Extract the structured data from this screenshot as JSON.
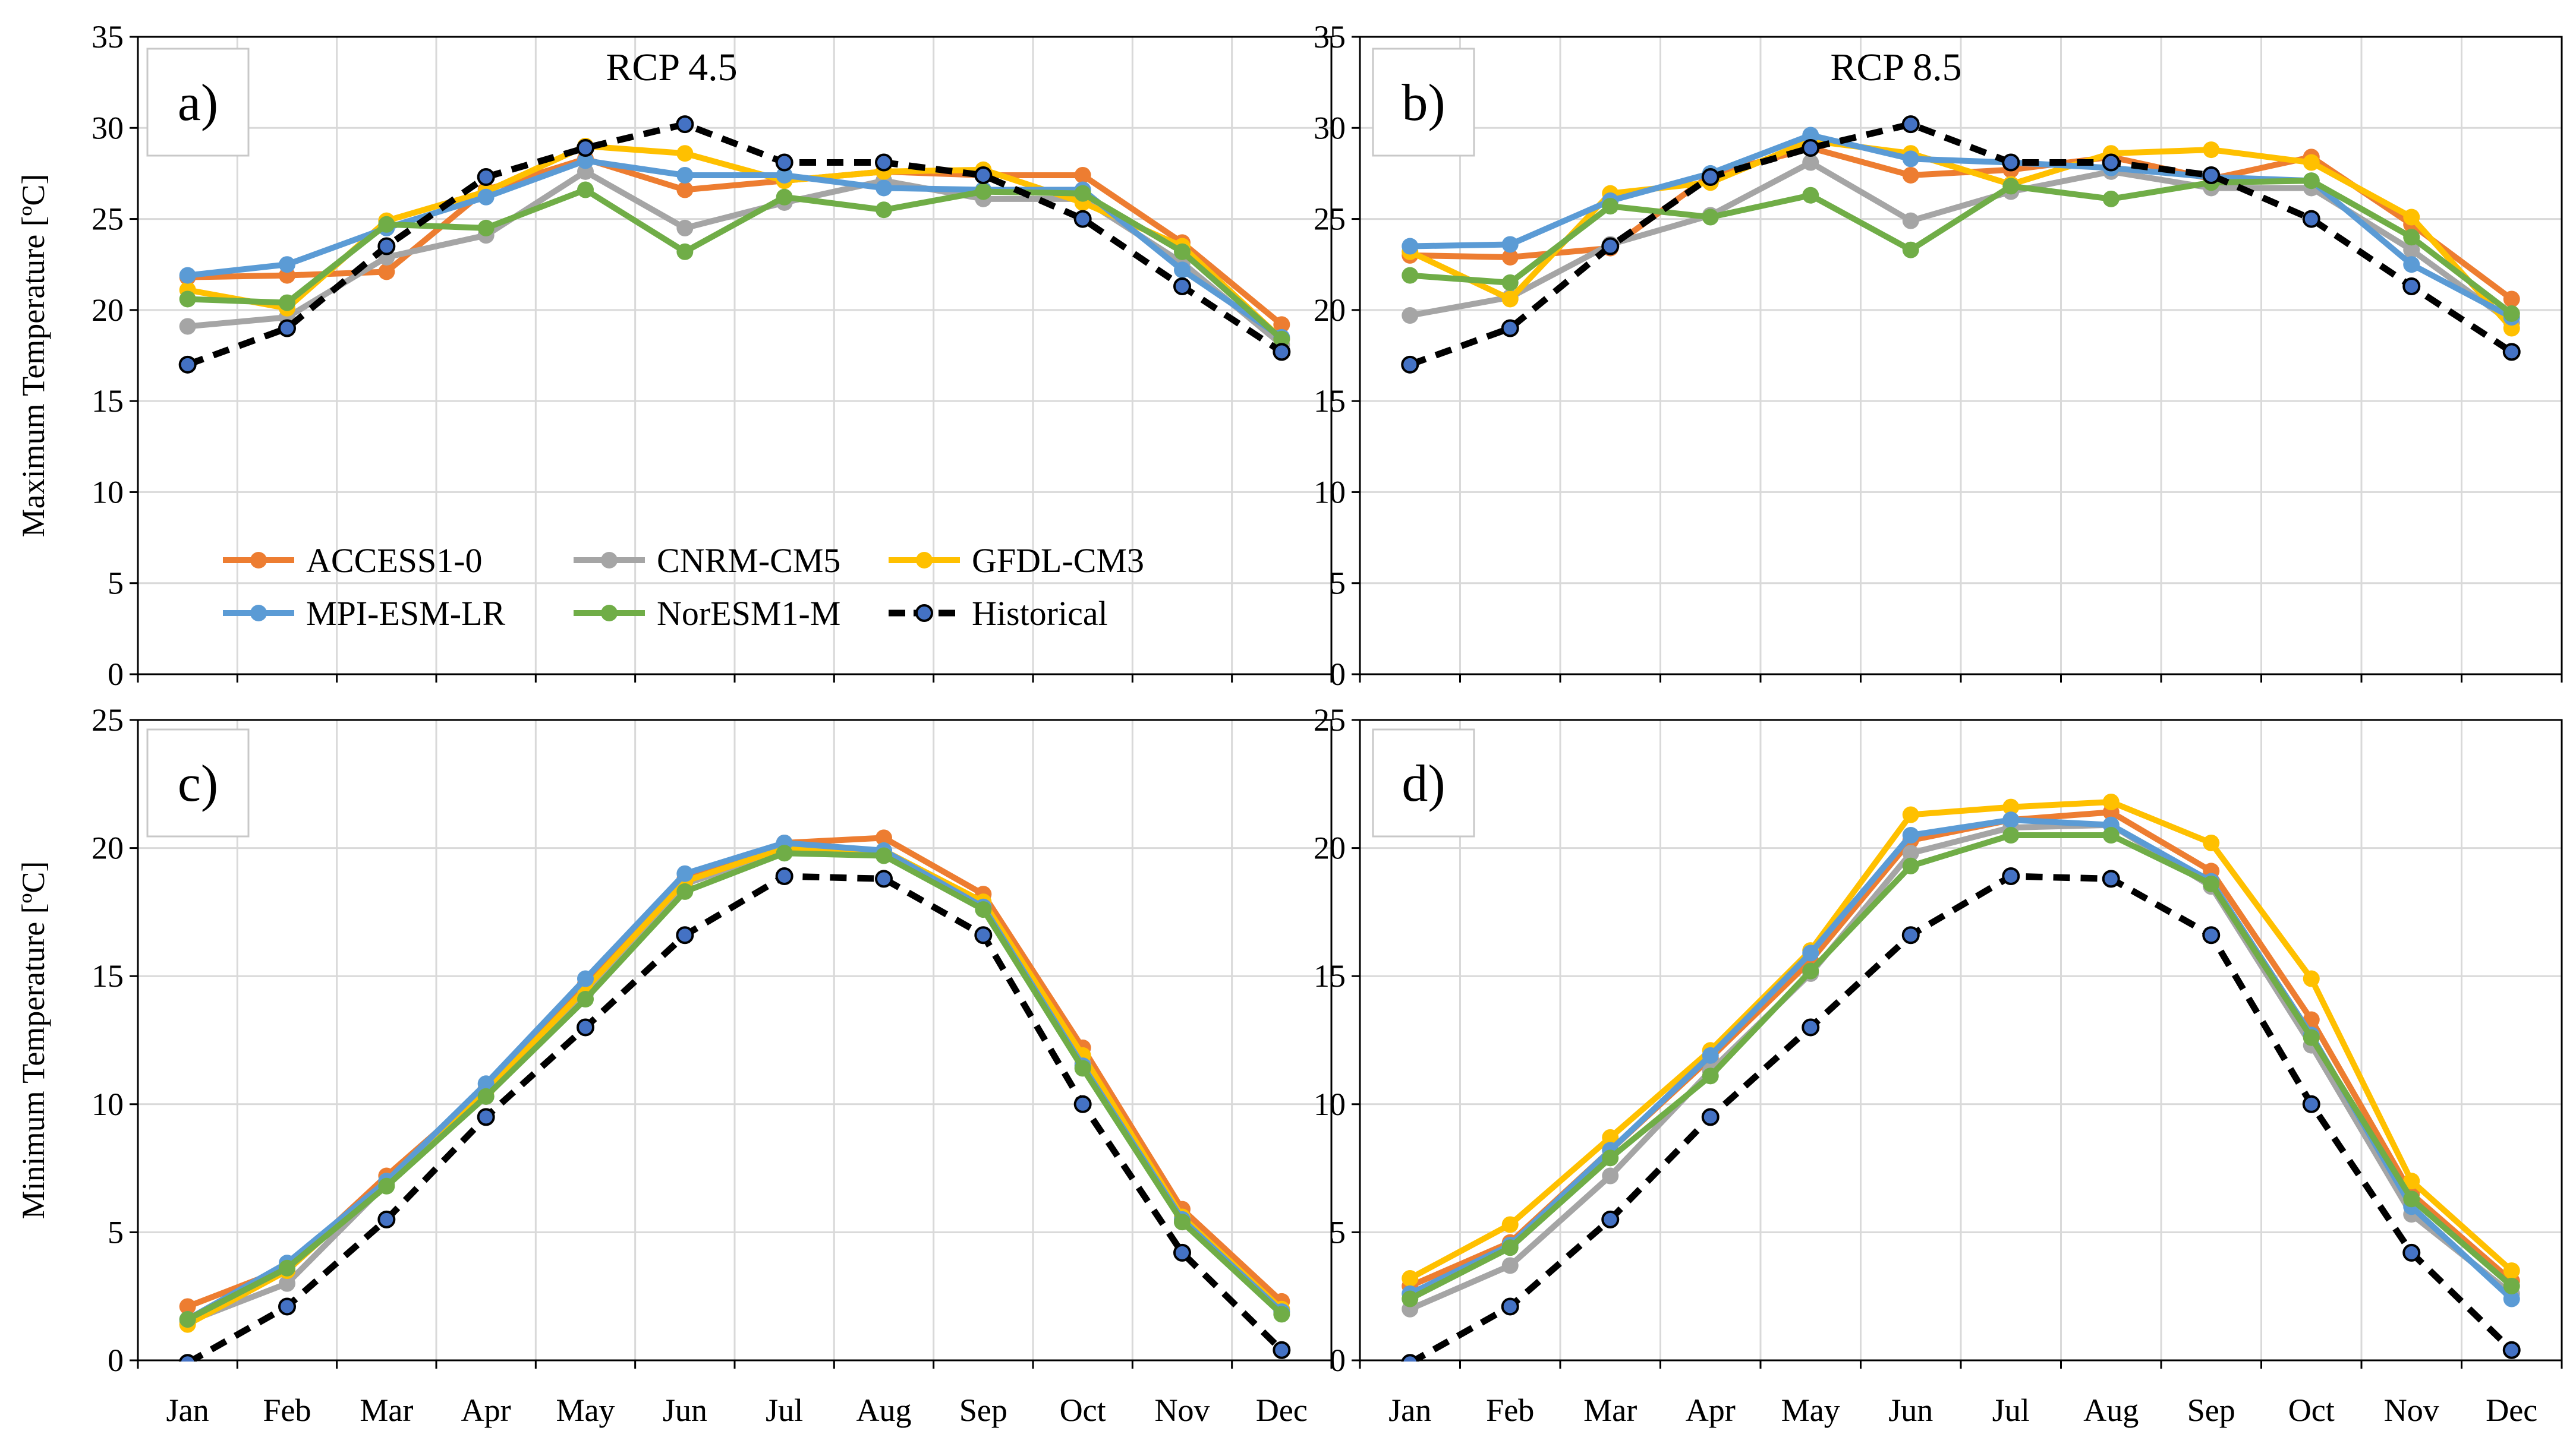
{
  "months": [
    "Jan",
    "Feb",
    "Mar",
    "Apr",
    "May",
    "Jun",
    "Jul",
    "Aug",
    "Sep",
    "Oct",
    "Nov",
    "Dec"
  ],
  "colors": {
    "ACCESS1-0": "#ED7D31",
    "CNRM-CM5": "#A5A5A5",
    "GFDL-CM3": "#FFC000",
    "MPI-ESM-LR": "#5B9BD5",
    "NorESM1-M": "#70AD47",
    "Historical": "#000000",
    "historical_marker": "#4472C4"
  },
  "legend": {
    "entries": [
      "ACCESS1-0",
      "CNRM-CM5",
      "GFDL-CM3",
      "MPI-ESM-LR",
      "NorESM1-M",
      "Historical"
    ],
    "placement": "inside panel a, lower-left"
  },
  "chart_data": [
    {
      "type": "line",
      "panel_label": "a)",
      "title": "RCP 4.5",
      "ylabel": "Maximum Temperature [ºC]",
      "ylim": [
        0,
        35
      ],
      "yticks": [
        0,
        5,
        10,
        15,
        20,
        25,
        30,
        35
      ],
      "grid": true,
      "categories": [
        "Jan",
        "Feb",
        "Mar",
        "Apr",
        "May",
        "Jun",
        "Jul",
        "Aug",
        "Sep",
        "Oct",
        "Nov",
        "Dec"
      ],
      "series": [
        {
          "name": "ACCESS1-0",
          "values": [
            21.8,
            21.9,
            22.1,
            26.6,
            28.3,
            26.6,
            27.1,
            27.6,
            27.4,
            27.4,
            23.7,
            19.2
          ]
        },
        {
          "name": "CNRM-CM5",
          "values": [
            19.1,
            19.6,
            22.9,
            24.1,
            27.6,
            24.5,
            25.9,
            27.1,
            26.1,
            26.1,
            22.6,
            18.1
          ]
        },
        {
          "name": "GFDL-CM3",
          "values": [
            21.1,
            20.1,
            24.9,
            26.5,
            29.0,
            28.6,
            27.1,
            27.6,
            27.7,
            25.9,
            23.5,
            18.4
          ]
        },
        {
          "name": "MPI-ESM-LR",
          "values": [
            21.9,
            22.5,
            24.5,
            26.2,
            28.2,
            27.4,
            27.4,
            26.7,
            26.6,
            26.6,
            22.2,
            18.5
          ]
        },
        {
          "name": "NorESM1-M",
          "values": [
            20.6,
            20.4,
            24.7,
            24.5,
            26.6,
            23.2,
            26.2,
            25.5,
            26.5,
            26.4,
            23.2,
            18.4
          ]
        },
        {
          "name": "Historical",
          "values": [
            17.0,
            19.0,
            23.5,
            27.3,
            28.9,
            30.2,
            28.1,
            28.1,
            27.4,
            25.0,
            21.3,
            17.7
          ]
        }
      ]
    },
    {
      "type": "line",
      "panel_label": "b)",
      "title": "RCP 8.5",
      "ylabel": "",
      "ylim": [
        0,
        35
      ],
      "yticks": [
        0,
        5,
        10,
        15,
        20,
        25,
        30,
        35
      ],
      "grid": true,
      "categories": [
        "Jan",
        "Feb",
        "Mar",
        "Apr",
        "May",
        "Jun",
        "Jul",
        "Aug",
        "Sep",
        "Oct",
        "Nov",
        "Dec"
      ],
      "series": [
        {
          "name": "ACCESS1-0",
          "values": [
            23.0,
            22.9,
            23.4,
            27.4,
            28.9,
            27.4,
            27.7,
            28.4,
            27.2,
            28.4,
            24.7,
            20.6
          ]
        },
        {
          "name": "CNRM-CM5",
          "values": [
            19.7,
            20.7,
            23.6,
            25.2,
            28.1,
            24.9,
            26.5,
            27.6,
            26.7,
            26.7,
            23.3,
            19.3
          ]
        },
        {
          "name": "GFDL-CM3",
          "values": [
            23.2,
            20.6,
            26.4,
            27.0,
            29.3,
            28.6,
            26.9,
            28.6,
            28.8,
            28.1,
            25.1,
            19.0
          ]
        },
        {
          "name": "MPI-ESM-LR",
          "values": [
            23.5,
            23.6,
            26.0,
            27.5,
            29.6,
            28.3,
            28.1,
            27.8,
            27.3,
            27.1,
            22.5,
            19.6
          ]
        },
        {
          "name": "NorESM1-M",
          "values": [
            21.9,
            21.5,
            25.7,
            25.1,
            26.3,
            23.3,
            26.8,
            26.1,
            27.0,
            27.1,
            24.0,
            19.8
          ]
        },
        {
          "name": "Historical",
          "values": [
            17.0,
            19.0,
            23.5,
            27.3,
            28.9,
            30.2,
            28.1,
            28.1,
            27.4,
            25.0,
            21.3,
            17.7
          ]
        }
      ]
    },
    {
      "type": "line",
      "panel_label": "c)",
      "title": "",
      "ylabel": "Minimum Temperature [ºC]",
      "ylim": [
        0,
        25
      ],
      "yticks": [
        0,
        5,
        10,
        15,
        20,
        25
      ],
      "grid": true,
      "categories": [
        "Jan",
        "Feb",
        "Mar",
        "Apr",
        "May",
        "Jun",
        "Jul",
        "Aug",
        "Sep",
        "Oct",
        "Nov",
        "Dec"
      ],
      "series": [
        {
          "name": "ACCESS1-0",
          "values": [
            2.1,
            3.6,
            7.2,
            10.6,
            14.7,
            18.8,
            20.2,
            20.4,
            18.2,
            12.2,
            5.9,
            2.3
          ]
        },
        {
          "name": "CNRM-CM5",
          "values": [
            1.5,
            3.0,
            6.9,
            10.3,
            14.3,
            18.6,
            19.9,
            19.8,
            17.7,
            11.6,
            5.4,
            1.9
          ]
        },
        {
          "name": "GFDL-CM3",
          "values": [
            1.4,
            3.5,
            7.0,
            10.5,
            14.5,
            18.7,
            20.0,
            19.9,
            17.9,
            11.9,
            5.6,
            2.0
          ]
        },
        {
          "name": "MPI-ESM-LR",
          "values": [
            1.6,
            3.8,
            7.0,
            10.8,
            14.9,
            19.0,
            20.2,
            19.9,
            17.7,
            11.5,
            5.5,
            1.9
          ]
        },
        {
          "name": "NorESM1-M",
          "values": [
            1.6,
            3.6,
            6.8,
            10.3,
            14.1,
            18.3,
            19.8,
            19.7,
            17.6,
            11.4,
            5.4,
            1.8
          ]
        },
        {
          "name": "Historical",
          "values": [
            -0.1,
            2.1,
            5.5,
            9.5,
            13.0,
            16.6,
            18.9,
            18.8,
            16.6,
            10.0,
            4.2,
            0.4
          ]
        }
      ]
    },
    {
      "type": "line",
      "panel_label": "d)",
      "title": "",
      "ylabel": "",
      "ylim": [
        0,
        25
      ],
      "yticks": [
        0,
        5,
        10,
        15,
        20,
        25
      ],
      "grid": true,
      "categories": [
        "Jan",
        "Feb",
        "Mar",
        "Apr",
        "May",
        "Jun",
        "Jul",
        "Aug",
        "Sep",
        "Oct",
        "Nov",
        "Dec"
      ],
      "series": [
        {
          "name": "ACCESS1-0",
          "values": [
            2.9,
            4.6,
            8.2,
            11.8,
            15.6,
            20.3,
            21.1,
            21.4,
            19.1,
            13.3,
            6.5,
            3.1
          ]
        },
        {
          "name": "CNRM-CM5",
          "values": [
            2.0,
            3.7,
            7.2,
            11.3,
            15.1,
            19.8,
            20.8,
            20.9,
            18.5,
            12.3,
            5.7,
            2.6
          ]
        },
        {
          "name": "GFDL-CM3",
          "values": [
            3.2,
            5.3,
            8.7,
            12.1,
            16.0,
            21.3,
            21.6,
            21.8,
            20.2,
            14.9,
            7.0,
            3.5
          ]
        },
        {
          "name": "MPI-ESM-LR",
          "values": [
            2.6,
            4.5,
            8.2,
            11.9,
            15.9,
            20.5,
            21.1,
            20.9,
            18.7,
            12.7,
            6.0,
            2.4
          ]
        },
        {
          "name": "NorESM1-M",
          "values": [
            2.4,
            4.4,
            7.9,
            11.1,
            15.2,
            19.3,
            20.5,
            20.5,
            18.6,
            12.6,
            6.3,
            2.9
          ]
        },
        {
          "name": "Historical",
          "values": [
            -0.1,
            2.1,
            5.5,
            9.5,
            13.0,
            16.6,
            18.9,
            18.8,
            16.6,
            10.0,
            4.2,
            0.4
          ]
        }
      ]
    }
  ]
}
